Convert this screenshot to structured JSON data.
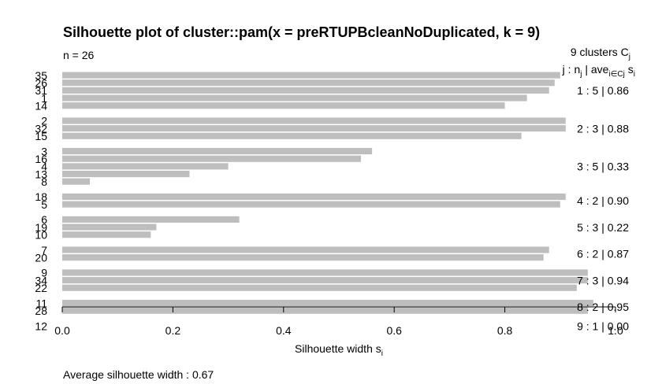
{
  "chart_data": {
    "type": "bar",
    "orientation": "horizontal",
    "title": "Silhouette plot of cluster::pam(x = preRTUPBcleanNoDuplicated, k = 9)",
    "n_label": "n = 26",
    "header_line1": "9  clusters  C",
    "header_line1_sub": "j",
    "header_line2": "j :  n",
    "header_line2_sub": "j",
    "header_line2_mid": " | ave",
    "header_line2_sub2": "i∈Cj",
    "header_line2_tail": "  s",
    "header_line2_sub3": "i",
    "xlabel": "Silhouette width s",
    "xlabel_sub": "i",
    "xlim": [
      0,
      1
    ],
    "xticks": [
      "0.0",
      "0.2",
      "0.4",
      "0.6",
      "0.8",
      "1.0"
    ],
    "footer": "Average silhouette width :  0.67",
    "bar_color": "#bebebe",
    "clusters": [
      {
        "label": "1 :  5  |  0.86",
        "obs": [
          {
            "id": "35",
            "v": 0.9
          },
          {
            "id": "26",
            "v": 0.89
          },
          {
            "id": "31",
            "v": 0.88
          },
          {
            "id": "1",
            "v": 0.84
          },
          {
            "id": "14",
            "v": 0.8
          }
        ]
      },
      {
        "label": "2 :  3  |  0.88",
        "obs": [
          {
            "id": "2",
            "v": 0.91
          },
          {
            "id": "32",
            "v": 0.91
          },
          {
            "id": "15",
            "v": 0.83
          }
        ]
      },
      {
        "label": "3 :  5  |  0.33",
        "obs": [
          {
            "id": "3",
            "v": 0.56
          },
          {
            "id": "16",
            "v": 0.54
          },
          {
            "id": "4",
            "v": 0.3
          },
          {
            "id": "13",
            "v": 0.23
          },
          {
            "id": "8",
            "v": 0.05
          }
        ]
      },
      {
        "label": "4 :  2  |  0.90",
        "obs": [
          {
            "id": "18",
            "v": 0.91
          },
          {
            "id": "5",
            "v": 0.9
          }
        ]
      },
      {
        "label": "5 :  3  |  0.22",
        "obs": [
          {
            "id": "6",
            "v": 0.32
          },
          {
            "id": "19",
            "v": 0.17
          },
          {
            "id": "10",
            "v": 0.16
          }
        ]
      },
      {
        "label": "6 :  2  |  0.87",
        "obs": [
          {
            "id": "7",
            "v": 0.88
          },
          {
            "id": "20",
            "v": 0.87
          }
        ]
      },
      {
        "label": "7 :  3  |  0.94",
        "obs": [
          {
            "id": "9",
            "v": 0.95
          },
          {
            "id": "34",
            "v": 0.95
          },
          {
            "id": "22",
            "v": 0.93
          }
        ]
      },
      {
        "label": "8 :  2  |  0.95",
        "obs": [
          {
            "id": "11",
            "v": 0.96
          },
          {
            "id": "28",
            "v": 0.95
          }
        ]
      },
      {
        "label": "9 :  1  |  0.00",
        "obs": [
          {
            "id": "12",
            "v": 0.0
          }
        ]
      }
    ]
  }
}
